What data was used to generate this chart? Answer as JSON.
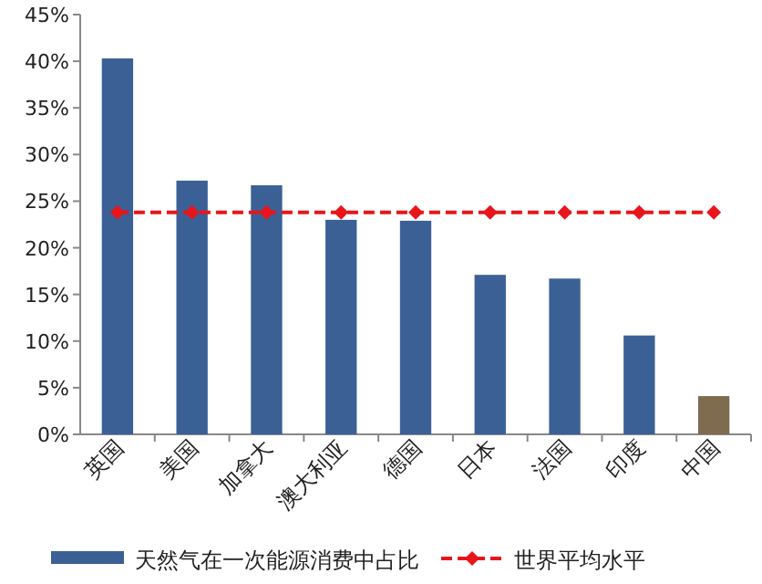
{
  "chart_data": {
    "type": "bar",
    "categories": [
      "英国",
      "美国",
      "加拿大",
      "澳大利亚",
      "德国",
      "日本",
      "法国",
      "印度",
      "中国"
    ],
    "series": [
      {
        "name": "天然气在一次能源消费中占比",
        "color": "#3b6096",
        "colors": [
          "#3b6096",
          "#3b6096",
          "#3b6096",
          "#3b6096",
          "#3b6096",
          "#3b6096",
          "#3b6096",
          "#3b6096",
          "#7f6b4e"
        ],
        "values": [
          40.3,
          27.2,
          26.7,
          23.0,
          22.9,
          17.1,
          16.7,
          10.6,
          4.1
        ]
      },
      {
        "name": "世界平均水平",
        "type": "line",
        "color": "#e8151b",
        "line_style": "dashed",
        "marker": "diamond",
        "values": [
          23.8,
          23.8,
          23.8,
          23.8,
          23.8,
          23.8,
          23.8,
          23.8,
          23.8
        ]
      }
    ],
    "ylim": [
      0,
      45
    ],
    "yticks": [
      {
        "value": 0,
        "label": "0%"
      },
      {
        "value": 5,
        "label": "5%"
      },
      {
        "value": 10,
        "label": "10%"
      },
      {
        "value": 15,
        "label": "15%"
      },
      {
        "value": 20,
        "label": "20%"
      },
      {
        "value": 25,
        "label": "25%"
      },
      {
        "value": 30,
        "label": "30%"
      },
      {
        "value": 35,
        "label": "35%"
      },
      {
        "value": 40,
        "label": "40%"
      },
      {
        "value": 45,
        "label": "45%"
      }
    ],
    "legend": "bottom",
    "grid": false
  }
}
